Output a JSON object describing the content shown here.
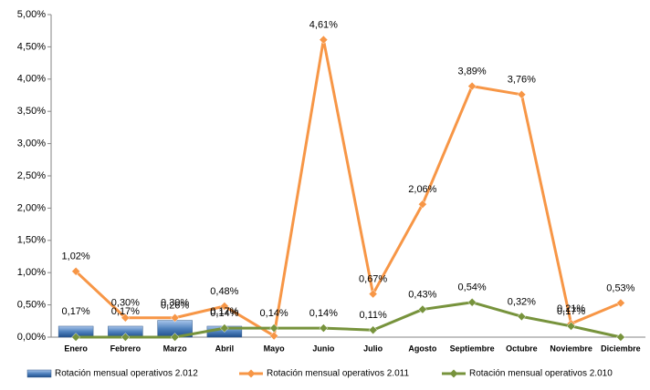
{
  "chart_data": {
    "type": "line",
    "categories": [
      "Enero",
      "Febrero",
      "Marzo",
      "Abril",
      "Mayo",
      "Junio",
      "Julio",
      "Agosto",
      "Septiembre",
      "Octubre",
      "Noviembre",
      "Diciembre"
    ],
    "ylim": [
      0,
      5
    ],
    "yticks": [
      {
        "value": 0,
        "label": "0,00%"
      },
      {
        "value": 0.5,
        "label": "0,50%"
      },
      {
        "value": 1,
        "label": "1,00%"
      },
      {
        "value": 1.5,
        "label": "1,50%"
      },
      {
        "value": 2,
        "label": "2,00%"
      },
      {
        "value": 2.5,
        "label": "2,50%"
      },
      {
        "value": 3,
        "label": "3,00%"
      },
      {
        "value": 3.5,
        "label": "3,50%"
      },
      {
        "value": 4,
        "label": "4,00%"
      },
      {
        "value": 4.5,
        "label": "4,50%"
      },
      {
        "value": 5,
        "label": "5,00%"
      }
    ],
    "series": [
      {
        "name": "Rotación mensual operativos 2.012",
        "type": "bar",
        "color": "#4f81bd",
        "values": [
          0.17,
          0.17,
          0.26,
          0.17,
          null,
          null,
          null,
          null,
          null,
          null,
          null,
          null
        ],
        "value_labels": [
          "0,17%",
          "0,17%",
          "0,26%",
          "0,17%",
          null,
          null,
          null,
          null,
          null,
          null,
          null,
          null
        ]
      },
      {
        "name": "Rotación mensual operativos 2.011",
        "type": "line",
        "color": "#f79646",
        "values": [
          1.02,
          0.3,
          0.3,
          0.48,
          0.02,
          4.61,
          0.67,
          2.06,
          3.89,
          3.76,
          0.21,
          0.53
        ],
        "value_labels": [
          "1,02%",
          "0,30%",
          "0,30%",
          "0,48%",
          null,
          "4,61%",
          "0,67%",
          "2,06%",
          "3,89%",
          "3,76%",
          "0,21%",
          "0,53%"
        ]
      },
      {
        "name": "Rotación mensual operativos 2.010",
        "type": "line",
        "color": "#77933c",
        "values": [
          0,
          0,
          0,
          0.14,
          0.14,
          0.14,
          0.11,
          0.43,
          0.54,
          0.32,
          0.17,
          0
        ],
        "value_labels": [
          null,
          null,
          null,
          "0,14%",
          "0,14%",
          "0,14%",
          "0,11%",
          "0,43%",
          "0,54%",
          "0,32%",
          "0,17%",
          null
        ]
      }
    ],
    "grid": false
  }
}
